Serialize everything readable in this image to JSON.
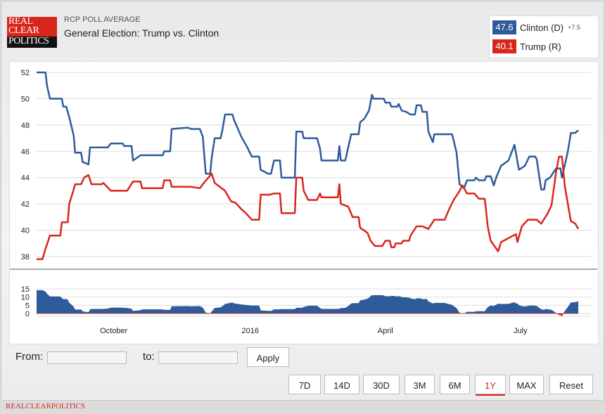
{
  "header": {
    "logo_lines": [
      "REAL",
      "CLEAR",
      "POLITICS"
    ],
    "subtitle": "RCP POLL AVERAGE",
    "title": "General Election: Trump vs. Clinton"
  },
  "legend": {
    "clinton": {
      "value": "47.6",
      "label": "Clinton (D)",
      "spread": "+7.5",
      "color": "#2e5b9a"
    },
    "trump": {
      "value": "40.1",
      "label": "Trump (R)",
      "color": "#d9261c"
    }
  },
  "chart_data": [
    {
      "type": "line",
      "ylim": [
        38,
        52
      ],
      "yticks": [
        "52",
        "50",
        "48",
        "46",
        "44",
        "42",
        "40",
        "38"
      ],
      "xlim": [
        "2015-08-10",
        "2016-08-09"
      ],
      "xticks": [
        {
          "date": "2015-10-01",
          "label": "October"
        },
        {
          "date": "2016-01-01",
          "label": "2016"
        },
        {
          "date": "2016-04-01",
          "label": "April"
        },
        {
          "date": "2016-07-01",
          "label": "July"
        }
      ],
      "grid": true,
      "series": [
        {
          "name": "Clinton (D)",
          "color": "#2e5b9a",
          "points": [
            [
              "2015-08-10",
              52.0
            ],
            [
              "2015-08-16",
              52.0
            ],
            [
              "2015-08-17",
              51.0
            ],
            [
              "2015-08-19",
              50.0
            ],
            [
              "2015-08-27",
              50.0
            ],
            [
              "2015-08-28",
              49.4
            ],
            [
              "2015-08-30",
              49.4
            ],
            [
              "2015-09-01",
              48.6
            ],
            [
              "2015-09-04",
              47.2
            ],
            [
              "2015-09-05",
              45.9
            ],
            [
              "2015-09-09",
              45.9
            ],
            [
              "2015-09-10",
              45.2
            ],
            [
              "2015-09-14",
              45.0
            ],
            [
              "2015-09-15",
              46.3
            ],
            [
              "2015-09-27",
              46.3
            ],
            [
              "2015-09-29",
              46.6
            ],
            [
              "2015-10-07",
              46.6
            ],
            [
              "2015-10-08",
              46.4
            ],
            [
              "2015-10-13",
              46.4
            ],
            [
              "2015-10-14",
              45.3
            ],
            [
              "2015-10-19",
              45.7
            ],
            [
              "2015-11-03",
              45.7
            ],
            [
              "2015-11-04",
              46.0
            ],
            [
              "2015-11-08",
              46.0
            ],
            [
              "2015-11-09",
              47.7
            ],
            [
              "2015-11-20",
              47.8
            ],
            [
              "2015-11-22",
              47.7
            ],
            [
              "2015-11-28",
              47.7
            ],
            [
              "2015-11-30",
              47.1
            ],
            [
              "2015-12-02",
              44.3
            ],
            [
              "2015-12-05",
              44.3
            ],
            [
              "2015-12-06",
              45.5
            ],
            [
              "2015-12-08",
              47.0
            ],
            [
              "2015-12-12",
              47.0
            ],
            [
              "2015-12-13",
              47.5
            ],
            [
              "2015-12-15",
              48.8
            ],
            [
              "2015-12-20",
              48.8
            ],
            [
              "2015-12-21",
              48.4
            ],
            [
              "2015-12-26",
              47.1
            ],
            [
              "2015-12-30",
              46.3
            ],
            [
              "2016-01-02",
              45.6
            ],
            [
              "2016-01-07",
              45.6
            ],
            [
              "2016-01-08",
              44.6
            ],
            [
              "2016-01-13",
              44.3
            ],
            [
              "2016-01-15",
              44.3
            ],
            [
              "2016-01-17",
              45.3
            ],
            [
              "2016-01-21",
              45.3
            ],
            [
              "2016-01-22",
              44.0
            ],
            [
              "2016-01-31",
              44.0
            ],
            [
              "2016-02-01",
              47.5
            ],
            [
              "2016-02-05",
              47.5
            ],
            [
              "2016-02-06",
              47.0
            ],
            [
              "2016-02-15",
              47.0
            ],
            [
              "2016-02-17",
              46.2
            ],
            [
              "2016-02-18",
              45.3
            ],
            [
              "2016-02-29",
              45.3
            ],
            [
              "2016-03-01",
              46.4
            ],
            [
              "2016-03-02",
              45.3
            ],
            [
              "2016-03-05",
              45.3
            ],
            [
              "2016-03-06",
              45.8
            ],
            [
              "2016-03-09",
              47.3
            ],
            [
              "2016-03-14",
              47.3
            ],
            [
              "2016-03-15",
              48.2
            ],
            [
              "2016-03-18",
              48.5
            ],
            [
              "2016-03-21",
              49.1
            ],
            [
              "2016-03-23",
              50.3
            ],
            [
              "2016-03-24",
              50.0
            ],
            [
              "2016-03-31",
              50.0
            ],
            [
              "2016-04-01",
              49.7
            ],
            [
              "2016-04-04",
              49.7
            ],
            [
              "2016-04-05",
              49.4
            ],
            [
              "2016-04-09",
              49.4
            ],
            [
              "2016-04-10",
              49.6
            ],
            [
              "2016-04-12",
              49.1
            ],
            [
              "2016-04-15",
              49.0
            ],
            [
              "2016-04-18",
              48.8
            ],
            [
              "2016-04-21",
              48.8
            ],
            [
              "2016-04-22",
              49.5
            ],
            [
              "2016-04-25",
              49.5
            ],
            [
              "2016-04-26",
              49.0
            ],
            [
              "2016-04-29",
              49.0
            ],
            [
              "2016-04-30",
              47.5
            ],
            [
              "2016-05-03",
              46.7
            ],
            [
              "2016-05-04",
              47.3
            ],
            [
              "2016-05-16",
              47.3
            ],
            [
              "2016-05-19",
              45.9
            ],
            [
              "2016-05-21",
              43.5
            ],
            [
              "2016-05-24",
              43.2
            ],
            [
              "2016-05-26",
              43.8
            ],
            [
              "2016-05-31",
              43.8
            ],
            [
              "2016-06-01",
              44.0
            ],
            [
              "2016-06-03",
              43.8
            ],
            [
              "2016-06-07",
              43.8
            ],
            [
              "2016-06-08",
              44.1
            ],
            [
              "2016-06-11",
              44.1
            ],
            [
              "2016-06-13",
              43.4
            ],
            [
              "2016-06-15",
              44.1
            ],
            [
              "2016-06-18",
              44.9
            ],
            [
              "2016-06-23",
              45.3
            ],
            [
              "2016-06-27",
              46.5
            ],
            [
              "2016-06-30",
              44.6
            ],
            [
              "2016-07-04",
              44.9
            ],
            [
              "2016-07-07",
              45.6
            ],
            [
              "2016-07-11",
              45.6
            ],
            [
              "2016-07-12",
              45.4
            ],
            [
              "2016-07-15",
              43.1
            ],
            [
              "2016-07-17",
              43.1
            ],
            [
              "2016-07-18",
              43.8
            ],
            [
              "2016-07-21",
              44.0
            ],
            [
              "2016-07-25",
              44.7
            ],
            [
              "2016-07-28",
              44.7
            ],
            [
              "2016-07-29",
              44.0
            ],
            [
              "2016-08-02",
              46.0
            ],
            [
              "2016-08-04",
              47.4
            ],
            [
              "2016-08-07",
              47.4
            ],
            [
              "2016-08-09",
              47.6
            ]
          ]
        },
        {
          "name": "Trump (R)",
          "color": "#d9261c",
          "points": [
            [
              "2015-08-10",
              37.8
            ],
            [
              "2015-08-14",
              37.8
            ],
            [
              "2015-08-16",
              38.6
            ],
            [
              "2015-08-19",
              39.6
            ],
            [
              "2015-08-26",
              39.6
            ],
            [
              "2015-08-27",
              40.6
            ],
            [
              "2015-08-31",
              40.6
            ],
            [
              "2015-09-01",
              42.0
            ],
            [
              "2015-09-04",
              43.1
            ],
            [
              "2015-09-05",
              43.5
            ],
            [
              "2015-09-09",
              43.5
            ],
            [
              "2015-09-11",
              44.0
            ],
            [
              "2015-09-14",
              44.2
            ],
            [
              "2015-09-16",
              43.5
            ],
            [
              "2015-09-23",
              43.5
            ],
            [
              "2015-09-24",
              43.6
            ],
            [
              "2015-09-29",
              43.0
            ],
            [
              "2015-10-10",
              43.0
            ],
            [
              "2015-10-14",
              43.7
            ],
            [
              "2015-10-19",
              43.7
            ],
            [
              "2015-10-20",
              43.2
            ],
            [
              "2015-11-03",
              43.2
            ],
            [
              "2015-11-04",
              43.8
            ],
            [
              "2015-11-08",
              43.8
            ],
            [
              "2015-11-09",
              43.3
            ],
            [
              "2015-11-22",
              43.3
            ],
            [
              "2015-11-28",
              43.2
            ],
            [
              "2015-11-30",
              43.5
            ],
            [
              "2015-12-06",
              44.3
            ],
            [
              "2015-12-08",
              43.6
            ],
            [
              "2015-12-15",
              43.0
            ],
            [
              "2015-12-19",
              42.2
            ],
            [
              "2015-12-22",
              42.1
            ],
            [
              "2015-12-26",
              41.6
            ],
            [
              "2015-12-29",
              41.3
            ],
            [
              "2016-01-02",
              40.8
            ],
            [
              "2016-01-07",
              40.8
            ],
            [
              "2016-01-08",
              42.7
            ],
            [
              "2016-01-14",
              42.7
            ],
            [
              "2016-01-17",
              42.8
            ],
            [
              "2016-01-21",
              42.8
            ],
            [
              "2016-01-22",
              41.3
            ],
            [
              "2016-01-31",
              41.3
            ],
            [
              "2016-02-01",
              44.0
            ],
            [
              "2016-02-05",
              44.0
            ],
            [
              "2016-02-06",
              43.0
            ],
            [
              "2016-02-09",
              42.3
            ],
            [
              "2016-02-15",
              42.3
            ],
            [
              "2016-02-17",
              42.8
            ],
            [
              "2016-02-18",
              42.5
            ],
            [
              "2016-02-29",
              42.5
            ],
            [
              "2016-03-01",
              43.5
            ],
            [
              "2016-03-02",
              42.0
            ],
            [
              "2016-03-07",
              41.8
            ],
            [
              "2016-03-10",
              41.0
            ],
            [
              "2016-03-14",
              41.0
            ],
            [
              "2016-03-15",
              40.2
            ],
            [
              "2016-03-20",
              39.8
            ],
            [
              "2016-03-22",
              39.2
            ],
            [
              "2016-03-25",
              38.8
            ],
            [
              "2016-03-30",
              38.8
            ],
            [
              "2016-04-01",
              39.2
            ],
            [
              "2016-04-04",
              39.2
            ],
            [
              "2016-04-05",
              38.7
            ],
            [
              "2016-04-07",
              38.7
            ],
            [
              "2016-04-08",
              39.0
            ],
            [
              "2016-04-12",
              39.0
            ],
            [
              "2016-04-13",
              39.2
            ],
            [
              "2016-04-17",
              39.2
            ],
            [
              "2016-04-18",
              39.6
            ],
            [
              "2016-04-22",
              40.3
            ],
            [
              "2016-04-26",
              40.3
            ],
            [
              "2016-04-30",
              40.1
            ],
            [
              "2016-05-04",
              40.8
            ],
            [
              "2016-05-11",
              40.8
            ],
            [
              "2016-05-14",
              41.6
            ],
            [
              "2016-05-17",
              42.3
            ],
            [
              "2016-05-20",
              42.8
            ],
            [
              "2016-05-23",
              43.4
            ],
            [
              "2016-05-26",
              42.8
            ],
            [
              "2016-05-31",
              42.8
            ],
            [
              "2016-06-03",
              42.4
            ],
            [
              "2016-06-07",
              42.4
            ],
            [
              "2016-06-09",
              40.3
            ],
            [
              "2016-06-11",
              39.2
            ],
            [
              "2016-06-16",
              38.4
            ],
            [
              "2016-06-18",
              39.1
            ],
            [
              "2016-06-23",
              39.4
            ],
            [
              "2016-06-28",
              39.7
            ],
            [
              "2016-06-29",
              39.1
            ],
            [
              "2016-07-02",
              40.3
            ],
            [
              "2016-07-06",
              40.8
            ],
            [
              "2016-07-12",
              40.8
            ],
            [
              "2016-07-15",
              40.5
            ],
            [
              "2016-07-19",
              41.2
            ],
            [
              "2016-07-22",
              41.9
            ],
            [
              "2016-07-25",
              44.4
            ],
            [
              "2016-07-27",
              45.6
            ],
            [
              "2016-07-29",
              45.6
            ],
            [
              "2016-07-31",
              43.3
            ],
            [
              "2016-08-02",
              42.0
            ],
            [
              "2016-08-04",
              40.7
            ],
            [
              "2016-08-07",
              40.5
            ],
            [
              "2016-08-09",
              40.1
            ]
          ]
        }
      ]
    },
    {
      "type": "area",
      "ylim": [
        -1,
        15
      ],
      "yticks": [
        "15",
        "10",
        "5",
        "0"
      ],
      "grid": true,
      "colors": {
        "positive": "#2e5b9a",
        "negative": "#d9261c"
      }
    }
  ],
  "controls": {
    "from_label": "From:",
    "from_value": "",
    "to_label": "to:",
    "to_value": "",
    "apply": "Apply",
    "ranges": [
      "7D",
      "14D",
      "30D",
      "3M",
      "6M",
      "1Y",
      "MAX",
      "Reset"
    ],
    "active_range": "1Y"
  },
  "footer": "REALCLEARPOLITICS"
}
